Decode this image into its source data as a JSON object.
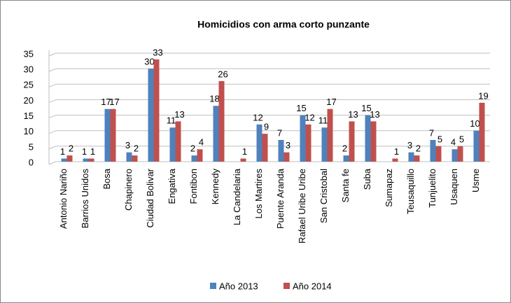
{
  "chart_data": {
    "type": "bar",
    "title": "Homicidios con arma corto punzante",
    "categories": [
      "Antonio Nariño",
      "Barrios Unidos",
      "Bosa",
      "Chapinero",
      "Ciudad Bolivar",
      "Engativa",
      "Fontibon",
      "Kennedy",
      "La Candelaria",
      "Los Martires",
      "Puente Aranda",
      "Rafael Uribe Uribe",
      "San Cristobal",
      "Santa fe",
      "Suba",
      "Sumapaz",
      "Teusaquillo",
      "Tunjuelito",
      "Usaquen",
      "Usme"
    ],
    "series": [
      {
        "name": "Año 2013",
        "color": "#4f81bd",
        "values": [
          1,
          1,
          17,
          3,
          30,
          11,
          2,
          18,
          null,
          12,
          7,
          15,
          11,
          2,
          15,
          null,
          3,
          7,
          4,
          10
        ]
      },
      {
        "name": "Año 2014",
        "color": "#c0504d",
        "values": [
          2,
          1,
          17,
          2,
          33,
          13,
          4,
          26,
          1,
          9,
          3,
          12,
          17,
          13,
          13,
          1,
          2,
          5,
          5,
          19
        ]
      }
    ],
    "ylim": [
      0,
      35
    ],
    "yticks": [
      0,
      5,
      10,
      15,
      20,
      25,
      30,
      35
    ],
    "grid": true,
    "legend": "bottom"
  }
}
